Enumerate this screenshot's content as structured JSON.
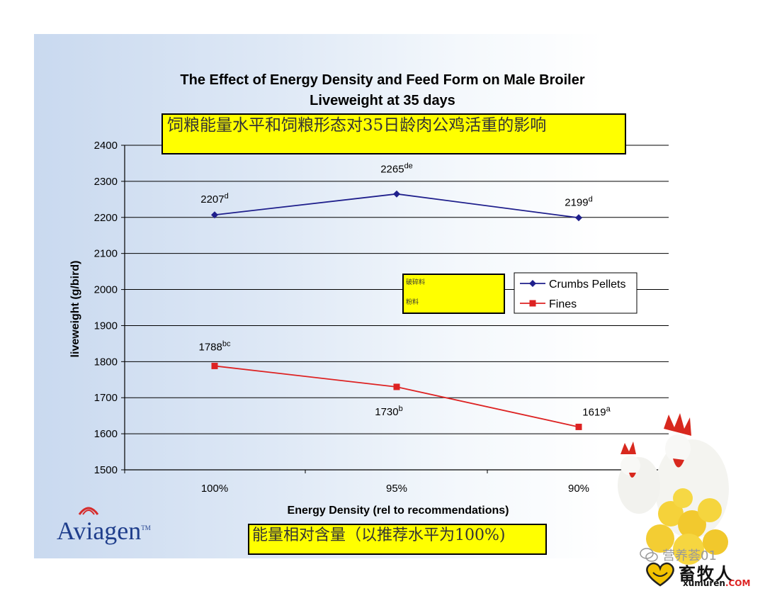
{
  "titles": {
    "line1": "The Effect of Energy Density and Feed Form on Male Broiler",
    "line2": "Liveweight at 35 days",
    "cn_title": "饲粮能量水平和饲粮形态对35日龄肉公鸡活重的影响",
    "cn_xlabel": "能量相对含量（以推荐水平为100%)"
  },
  "legend_cn": {
    "crumbs": "破碎料",
    "fines": "粉料"
  },
  "logo": {
    "name": "Aviagen",
    "tm": "TM"
  },
  "watermark": {
    "wechat": "营养荟01",
    "site_cn": "畜牧人",
    "site_en": "xumuren",
    "site_tld": ".COM"
  },
  "chart_data": {
    "type": "line",
    "categories": [
      "100%",
      "95%",
      "90%"
    ],
    "xlabel": "Energy Density (rel to recommendations)",
    "ylabel": "liveweight (g/bird)",
    "ylim": [
      1500,
      2400
    ],
    "yticks": [
      1500,
      1600,
      1700,
      1800,
      1900,
      2000,
      2100,
      2200,
      2300,
      2400
    ],
    "grid": true,
    "legend": "right",
    "series": [
      {
        "name": "Crumbs Pellets",
        "color": "#1f1f8c",
        "marker": "diamond",
        "values": [
          2207,
          2265,
          2199
        ],
        "labels": [
          {
            "v": "2207",
            "s": "d"
          },
          {
            "v": "2265",
            "s": "de"
          },
          {
            "v": "2199",
            "s": "d"
          }
        ]
      },
      {
        "name": "Fines",
        "color": "#dd2222",
        "marker": "square",
        "values": [
          1788,
          1730,
          1619
        ],
        "labels": [
          {
            "v": "1788",
            "s": "bc"
          },
          {
            "v": "1730",
            "s": "b"
          },
          {
            "v": "1619",
            "s": "a"
          }
        ]
      }
    ]
  }
}
